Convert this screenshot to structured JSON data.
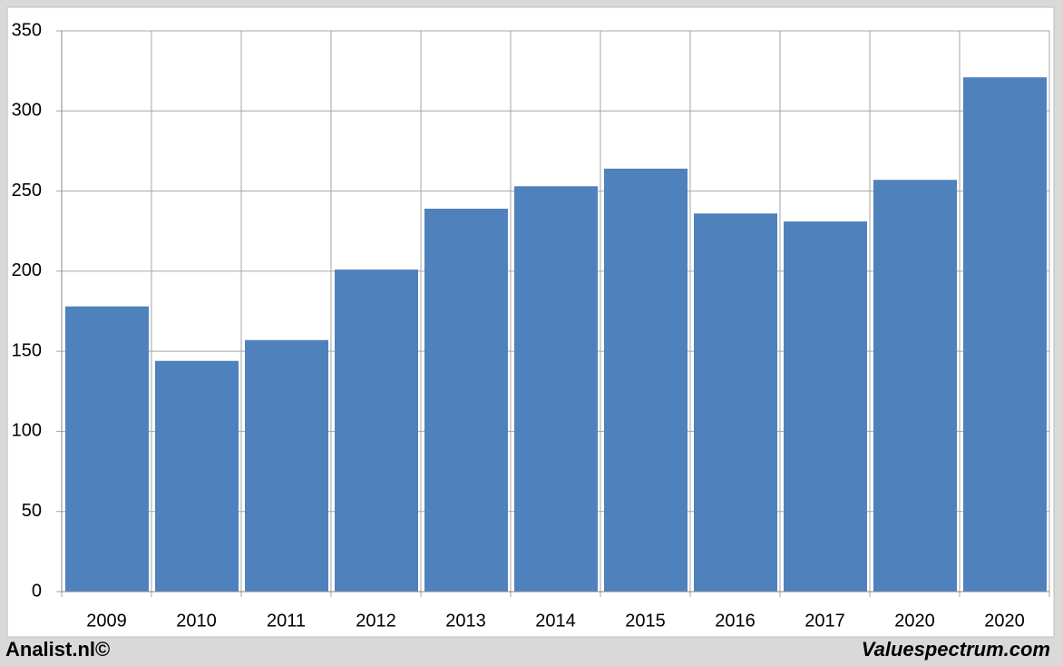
{
  "chart_data": {
    "type": "bar",
    "categories": [
      "2009",
      "2010",
      "2011",
      "2012",
      "2013",
      "2014",
      "2015",
      "2016",
      "2017",
      "2020",
      "2020"
    ],
    "values": [
      178,
      144,
      157,
      201,
      239,
      253,
      264,
      236,
      231,
      257,
      321
    ],
    "color": "#4f81bd",
    "ylim": [
      0,
      350
    ],
    "yticks": [
      0,
      50,
      100,
      150,
      200,
      250,
      300,
      350
    ],
    "grid": true,
    "source": "Analist.nl©",
    "credit": "Valuespectrum.com"
  }
}
